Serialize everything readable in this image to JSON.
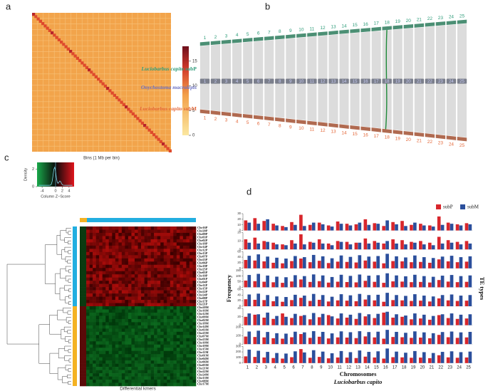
{
  "panel_labels": [
    "a",
    "b",
    "c",
    "d"
  ],
  "hic": {
    "xlabel": "Bins (1 Mb per bin)",
    "colorbar_lim": [
      0,
      18
    ],
    "colorbar_ticks": [
      0,
      5,
      10,
      15
    ]
  },
  "synteny": {
    "chromosomes": [
      1,
      2,
      3,
      4,
      5,
      6,
      7,
      8,
      9,
      10,
      11,
      12,
      13,
      14,
      15,
      16,
      17,
      18,
      19,
      20,
      21,
      22,
      23,
      24,
      25
    ],
    "top": {
      "species": "Luciobarbus capito",
      "sub": "subP",
      "color": "#2e9c7a"
    },
    "middle": {
      "species": "Onychostoma macrolepis",
      "color": "#6a70c4"
    },
    "bottom": {
      "species": "Luciobarbus capito",
      "sub": "subM",
      "color": "#e4683a"
    }
  },
  "kmer": {
    "key_ylabel": "Density",
    "key_xlabel": "Column Z−Score",
    "key_xlim": [
      -5.5,
      5.5
    ],
    "key_xticks": [
      -4,
      0,
      2,
      4
    ],
    "key_ylim": [
      0,
      2.8
    ],
    "key_yticks": [
      0,
      2
    ],
    "xlabel": "Differential kmers",
    "rows": [
      "Chr16P",
      "Chr20P",
      "Chr09P",
      "Chr03P",
      "Chr02P",
      "Chr18P",
      "Chr14P",
      "Chr12P",
      "Chr13P",
      "Chr07P",
      "Chr23P",
      "Chr06P",
      "Chr19P",
      "Chr25P",
      "Chr05P",
      "Chr10P",
      "Chr01P",
      "Chr04P",
      "Chr11P",
      "Chr15P",
      "Chr22P",
      "Chr24P",
      "Chr08P",
      "Chr17P",
      "Chr21P",
      "Chr20M",
      "Chr16M",
      "Chr12M",
      "Chr09M",
      "Chr02M",
      "Chr18M",
      "Chr14M",
      "Chr03M",
      "Chr25M",
      "Chr07M",
      "Chr23M",
      "Chr10M",
      "Chr19M",
      "Chr15M",
      "Chr11M",
      "Chr01M",
      "Chr04M",
      "Chr06M",
      "Chr05M",
      "Chr21M",
      "Chr22M",
      "Chr24M",
      "Chr13M",
      "Chr08M",
      "Chr17M"
    ]
  },
  "chart_data": {
    "type": "bar",
    "xlabel": "Chromosomes",
    "subtitle": "Luciobarbus capito",
    "ylabel": "Frequency",
    "right_label": "TE types",
    "categories": [
      1,
      2,
      3,
      4,
      5,
      6,
      7,
      8,
      9,
      10,
      11,
      12,
      13,
      14,
      15,
      16,
      17,
      18,
      19,
      20,
      21,
      22,
      23,
      24,
      25
    ],
    "series": [
      {
        "name": "subP",
        "color": "#d8262c"
      },
      {
        "name": "subM",
        "color": "#2b4f9c"
      }
    ],
    "rows": [
      {
        "ylim": [
          0,
          30
        ],
        "yticks": [
          0,
          10,
          20,
          30
        ],
        "values": [
          [
            18,
            22,
            17,
            12,
            8,
            15,
            28,
            10,
            14,
            9,
            16,
            12,
            11,
            20,
            13,
            8,
            15,
            17,
            10,
            12,
            9,
            25,
            14,
            11,
            13
          ],
          [
            14,
            12,
            20,
            9,
            6,
            10,
            8,
            14,
            11,
            7,
            12,
            9,
            14,
            10,
            12,
            18,
            11,
            8,
            14,
            9,
            7,
            10,
            12,
            9,
            11
          ]
        ]
      },
      {
        "ylim": [
          0,
          20
        ],
        "yticks": [
          0,
          10,
          20
        ],
        "values": [
          [
            12,
            14,
            10,
            8,
            6,
            11,
            18,
            9,
            12,
            7,
            10,
            9,
            8,
            13,
            10,
            7,
            12,
            11,
            9,
            10,
            8,
            15,
            11,
            9,
            10
          ],
          [
            8,
            7,
            9,
            6,
            5,
            7,
            6,
            8,
            7,
            5,
            9,
            6,
            8,
            7,
            8,
            10,
            7,
            6,
            8,
            6,
            5,
            7,
            8,
            6,
            7
          ]
        ]
      },
      {
        "ylim": [
          0,
          60
        ],
        "yticks": [
          0,
          20,
          40,
          60
        ],
        "values": [
          [
            30,
            28,
            25,
            20,
            18,
            26,
            35,
            22,
            27,
            19,
            24,
            23,
            21,
            28,
            24,
            18,
            26,
            25,
            22,
            23,
            20,
            32,
            25,
            22,
            24
          ],
          [
            45,
            50,
            42,
            38,
            35,
            44,
            40,
            48,
            43,
            36,
            46,
            41,
            47,
            42,
            44,
            52,
            43,
            39,
            46,
            40,
            37,
            42,
            45,
            40,
            43
          ]
        ]
      },
      {
        "ylim": [
          0,
          150
        ],
        "yticks": [
          0,
          50,
          100,
          150
        ],
        "values": [
          [
            60,
            55,
            50,
            45,
            40,
            52,
            70,
            48,
            55,
            42,
            50,
            47,
            44,
            58,
            49,
            40,
            53,
            51,
            46,
            48,
            43,
            65,
            51,
            46,
            49
          ],
          [
            110,
            120,
            105,
            95,
            90,
            108,
            100,
            115,
            106,
            92,
            112,
            102,
            114,
            104,
            108,
            125,
            106,
            98,
            112,
            100,
            94,
            104,
            110,
            100,
            106
          ]
        ]
      },
      {
        "ylim": [
          0,
          60
        ],
        "yticks": [
          0,
          20,
          40,
          60
        ],
        "values": [
          [
            25,
            23,
            22,
            18,
            16,
            22,
            30,
            19,
            23,
            17,
            21,
            20,
            18,
            24,
            21,
            16,
            22,
            21,
            19,
            20,
            17,
            28,
            21,
            19,
            20
          ],
          [
            42,
            45,
            40,
            35,
            33,
            41,
            38,
            44,
            40,
            34,
            43,
            39,
            44,
            40,
            41,
            48,
            40,
            37,
            43,
            38,
            35,
            40,
            42,
            38,
            40
          ]
        ]
      },
      {
        "ylim": [
          0,
          40
        ],
        "yticks": [
          0,
          20,
          40
        ],
        "values": [
          [
            20,
            25,
            18,
            15,
            28,
            17,
            22,
            14,
            19,
            24,
            16,
            18,
            15,
            21,
            17,
            30,
            18,
            20,
            14,
            16,
            13,
            24,
            17,
            15,
            16
          ],
          [
            28,
            26,
            30,
            22,
            20,
            27,
            24,
            29,
            27,
            21,
            28,
            25,
            29,
            26,
            27,
            32,
            26,
            23,
            28,
            25,
            22,
            26,
            28,
            25,
            26
          ]
        ]
      },
      {
        "ylim": [
          0,
          200
        ],
        "yticks": [
          0,
          100,
          200
        ],
        "values": [
          [
            90,
            85,
            80,
            70,
            65,
            82,
            120,
            75,
            88,
            68,
            80,
            78,
            72,
            92,
            80,
            65,
            85,
            82,
            75,
            78,
            70,
            110,
            82,
            75,
            80
          ],
          [
            150,
            160,
            145,
            130,
            125,
            148,
            140,
            155,
            146,
            128,
            152,
            142,
            154,
            144,
            148,
            170,
            146,
            135,
            152,
            140,
            130,
            144,
            150,
            140,
            146
          ]
        ]
      },
      {
        "ylim": [
          0,
          300
        ],
        "yticks": [
          0,
          100,
          200,
          300
        ],
        "values": [
          [
            120,
            110,
            100,
            90,
            80,
            105,
            250,
            95,
            110,
            85,
            100,
            98,
            90,
            115,
            100,
            80,
            105,
            102,
            95,
            98,
            88,
            140,
            102,
            95,
            100
          ],
          [
            240,
            220,
            200,
            180,
            170,
            210,
            190,
            230,
            205,
            175,
            215,
            195,
            225,
            200,
            210,
            260,
            205,
            185,
            215,
            195,
            180,
            200,
            210,
            195,
            205
          ]
        ]
      }
    ]
  }
}
